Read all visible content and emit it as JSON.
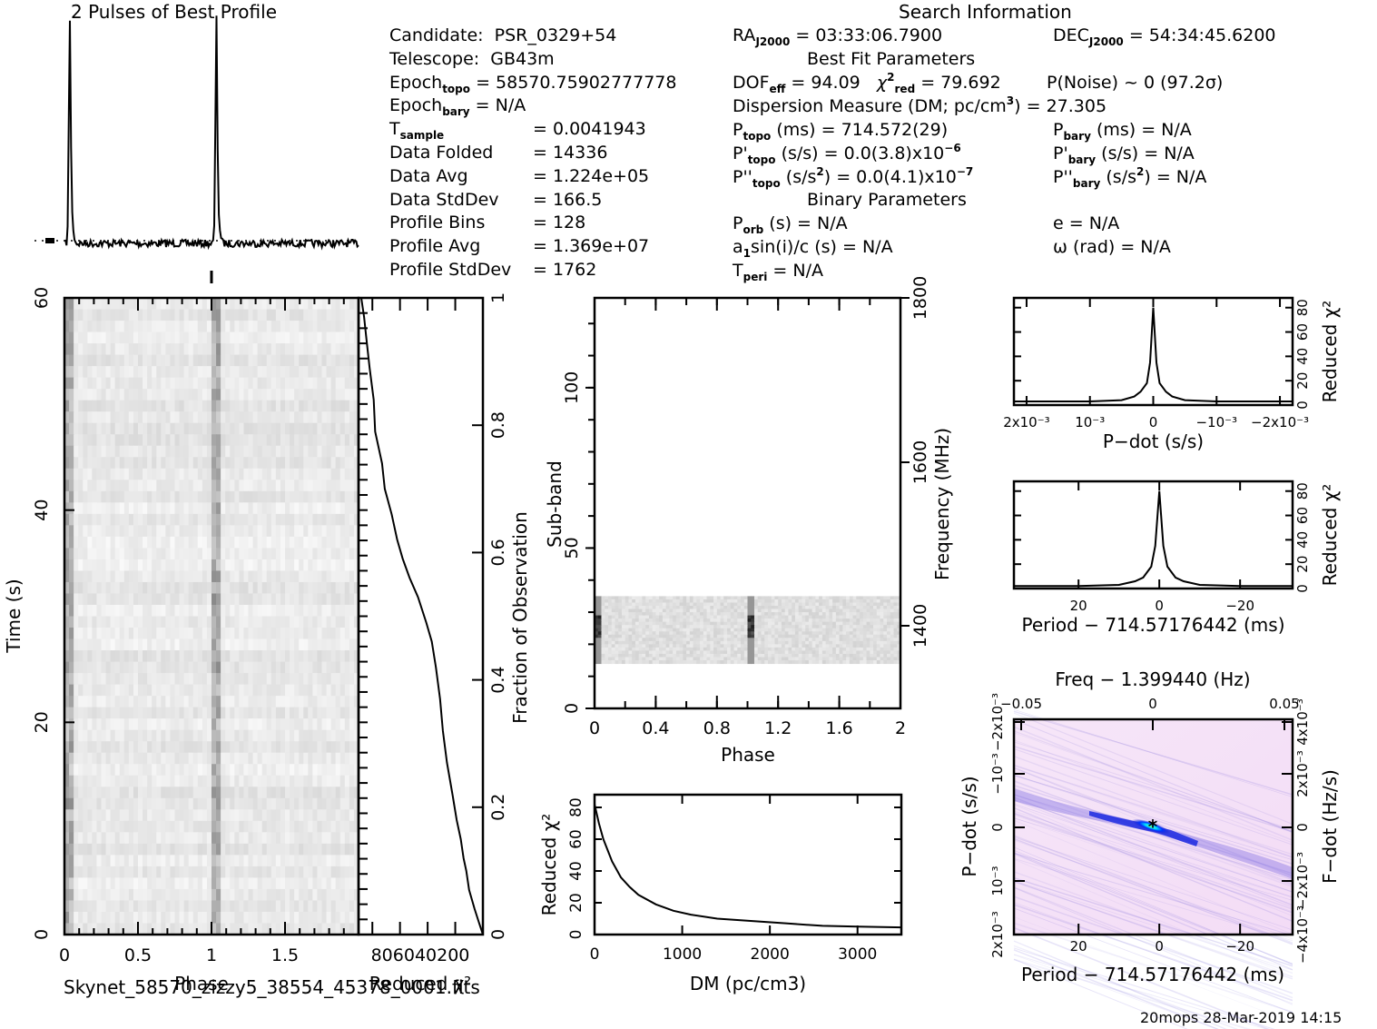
{
  "titles": {
    "profile": "2 Pulses of Best Profile",
    "search_info": "Search Information",
    "best_fit": "Best Fit Parameters",
    "binary": "Binary Parameters"
  },
  "info_left": [
    {
      "label": "Candidate:",
      "sub": "",
      "value": "PSR_0329+54"
    },
    {
      "label": "Telescope:",
      "sub": "",
      "value": "GB43m"
    },
    {
      "label": "Epoch",
      "sub": "topo",
      "value": "= 58570.75902777778"
    },
    {
      "label": "Epoch",
      "sub": "bary",
      "value": "= N/A"
    },
    {
      "label": "T",
      "sub": "sample",
      "value": "=   0.0041943"
    },
    {
      "label": "Data Folded",
      "sub": "",
      "value": "=   14336"
    },
    {
      "label": "Data Avg",
      "sub": "",
      "value": "=   1.224e+05"
    },
    {
      "label": "Data StdDev",
      "sub": "",
      "value": "=   166.5"
    },
    {
      "label": "Profile Bins",
      "sub": "",
      "value": "=   128"
    },
    {
      "label": "Profile Avg",
      "sub": "",
      "value": "=   1.369e+07"
    },
    {
      "label": "Profile StdDev",
      "sub": "",
      "value": "=   1762"
    }
  ],
  "search": {
    "ra_label": "RA",
    "ra_sub": "J2000",
    "ra_value": "= 03:33:06.7900",
    "dec_label": "DEC",
    "dec_sub": "J2000",
    "dec_value": "= 54:34:45.6200"
  },
  "best_fit": {
    "dof_label": "DOF",
    "dof_sub": "eff",
    "dof_value": "= 94.09",
    "chi_label": "χ",
    "chi_sup": "2",
    "chi_sub": "red",
    "chi_value": "= 79.692",
    "pnoise": "P(Noise) ~ 0    (97.2σ)",
    "dm_text": "Dispersion Measure (DM; pc/cm",
    "dm_sup": "3",
    "dm_value": ") = 27.305",
    "ptopo_label": "P",
    "ptopo_sub": "topo",
    "ptopo_value": "(ms) =   714.572(29)",
    "pdtopo_label": "P'",
    "pdtopo_sub": "topo",
    "pdtopo_value": "(s/s) = 0.0(3.8)x10",
    "pdtopo_exp": "−6",
    "pddtopo_label": "P''",
    "pddtopo_sub": "topo",
    "pddtopo_value": "(s/s",
    "pddtopo_sup": "2",
    "pddtopo_value2": ") = 0.0(4.1)x10",
    "pddtopo_exp": "−7",
    "pbary_label": "P",
    "pbary_sub": "bary",
    "pbary_value": "(ms) = N/A",
    "pdbary_label": "P'",
    "pdbary_sub": "bary",
    "pdbary_value": "(s/s) = N/A",
    "pddbary_label": "P''",
    "pddbary_sub": "bary",
    "pddbary_value": "(s/s",
    "pddbary_sup": "2",
    "pddbary_value2": ") = N/A"
  },
  "binary": {
    "porb_label": "P",
    "porb_sub": "orb",
    "porb_value": "(s) = N/A",
    "a1_label": "a",
    "a1_sub": "1",
    "a1_value": "sin(i)/c (s) = N/A",
    "tperi_label": "T",
    "tperi_sub": "peri",
    "tperi_value": "= N/A",
    "e_text": "e = N/A",
    "omega_text": "ω (rad) = N/A"
  },
  "footer": {
    "filename": "Skynet_58570_zizzy5_38554_45378_0001.fits",
    "stamp": "20mops 28-Mar-2019 14:15"
  },
  "chart_data": [
    {
      "id": "profile",
      "type": "line",
      "title": "2 Pulses of Best Profile",
      "xlabel": "",
      "ylabel": "",
      "xlim": [
        0,
        2
      ],
      "peaks_at_phase": [
        0.03,
        1.03
      ],
      "description": "Pulse profile repeated twice; sharp narrow peak near phase 0.03 and 1.03, flat noisy baseline elsewhere"
    },
    {
      "id": "time-phase",
      "type": "heatmap",
      "xlabel": "Phase",
      "ylabel": "Time (s)",
      "x_ticks": [
        "0",
        "0.5",
        "1",
        "1.5"
      ],
      "y_ticks": [
        "0",
        "20",
        "40",
        "60"
      ],
      "xlim": [
        0,
        2
      ],
      "ylim": [
        0,
        60
      ]
    },
    {
      "id": "time-chi2",
      "type": "line",
      "xlabel": "Reduced χ2",
      "ylabel": "Fraction of Observation",
      "x_ticks": [
        "80",
        "60",
        "40",
        "20",
        "0"
      ],
      "y_ticks": [
        "0",
        "0.2",
        "0.4",
        "0.6",
        "0.8",
        "1"
      ],
      "xlim": [
        90,
        0
      ],
      "ylim": [
        0,
        1
      ],
      "x": [
        0,
        3,
        6,
        10,
        12,
        14,
        16,
        19,
        22,
        26,
        29,
        31,
        34,
        37,
        41,
        47,
        53,
        58,
        62,
        66,
        71,
        73,
        78,
        79,
        82,
        84,
        86,
        88
      ],
      "y": [
        0,
        0.02,
        0.04,
        0.07,
        0.1,
        0.12,
        0.15,
        0.18,
        0.22,
        0.27,
        0.32,
        0.37,
        0.42,
        0.46,
        0.49,
        0.53,
        0.56,
        0.59,
        0.62,
        0.66,
        0.7,
        0.74,
        0.79,
        0.84,
        0.89,
        0.93,
        0.97,
        1.0
      ]
    },
    {
      "id": "subband-phase",
      "type": "heatmap",
      "xlabel": "Phase",
      "ylabel": "Sub-band",
      "y2label": "Frequency (MHz)",
      "x_ticks": [
        "0",
        "0.4",
        "0.8",
        "1.2",
        "1.6",
        "2"
      ],
      "y_ticks": [
        "0",
        "50",
        "100"
      ],
      "y2_ticks": [
        "1400",
        "1600",
        "1800"
      ],
      "xlim": [
        0,
        2
      ],
      "ylim": [
        0,
        128
      ],
      "filled_subbands": [
        14,
        35
      ]
    },
    {
      "id": "dm-chi2",
      "type": "line",
      "xlabel": "DM (pc/cm3)",
      "ylabel": "Reduced χ2",
      "x_ticks": [
        "0",
        "1000",
        "2000",
        "3000"
      ],
      "y_ticks": [
        "0",
        "20",
        "40",
        "60",
        "80"
      ],
      "xlim": [
        0,
        3500
      ],
      "ylim": [
        0,
        88
      ],
      "x": [
        0,
        50,
        100,
        200,
        300,
        400,
        500,
        700,
        900,
        1100,
        1400,
        1800,
        2200,
        2600,
        3000,
        3500
      ],
      "y": [
        82,
        70,
        60,
        46,
        36,
        30,
        25,
        19,
        15,
        12.5,
        10,
        8.5,
        7,
        5.5,
        5,
        4.5
      ]
    },
    {
      "id": "pdot-chi2",
      "type": "line",
      "xlabel": "P-dot (s/s)",
      "ylabel": "Reduced χ2",
      "x_ticks": [
        "2x10^-3",
        "10^-3",
        "0",
        "-10^-3",
        "-2x10^-3"
      ],
      "y_ticks": [
        "0",
        "20",
        "40",
        "60",
        "80"
      ],
      "xlim": [
        0.0022,
        -0.0022
      ],
      "ylim": [
        0,
        88
      ],
      "x": [
        0.0022,
        0.001,
        0.0005,
        0.0003,
        0.0002,
        0.0001,
        5e-05,
        0,
        -5e-05,
        -0.0001,
        -0.0002,
        -0.0003,
        -0.0005,
        -0.001,
        -0.0022
      ],
      "y": [
        3,
        3,
        4,
        7,
        11,
        18,
        35,
        80,
        35,
        18,
        11,
        7,
        4,
        3,
        3
      ]
    },
    {
      "id": "period-chi2",
      "type": "line",
      "xlabel": "Period - 714.57176442 (ms)",
      "ylabel": "Reduced χ2",
      "x_ticks": [
        "20",
        "0",
        "-20"
      ],
      "y_ticks": [
        "0",
        "20",
        "40",
        "60",
        "80"
      ],
      "xlim": [
        36,
        -33
      ],
      "ylim": [
        0,
        88
      ],
      "x": [
        36,
        20,
        10,
        6,
        4,
        2,
        1,
        0,
        -1,
        -2,
        -4,
        -6,
        -10,
        -20,
        -33
      ],
      "y": [
        2,
        2,
        3,
        6,
        9,
        18,
        35,
        80,
        35,
        18,
        9,
        6,
        3,
        2,
        2
      ]
    },
    {
      "id": "pdot-period-map",
      "type": "heatmap",
      "title": "Freq - 1.399440 (Hz)",
      "xlabel": "Period - 714.57176442 (ms)",
      "ylabel": "P-dot (s/s)",
      "y2label": "F-dot (Hz/s)",
      "x_ticks": [
        "20",
        "0",
        "-20"
      ],
      "x2_ticks": [
        "-0.05",
        "0",
        "0.05"
      ],
      "y_ticks": [
        "2x10^-3",
        "10^-3",
        "0",
        "-10^-3",
        "-2x10^-3"
      ],
      "y2_ticks": [
        "-4x10^-3",
        "-2x10^-3",
        "0",
        "2x10^-3",
        "4x10^-3"
      ],
      "best_marker": "*"
    }
  ]
}
